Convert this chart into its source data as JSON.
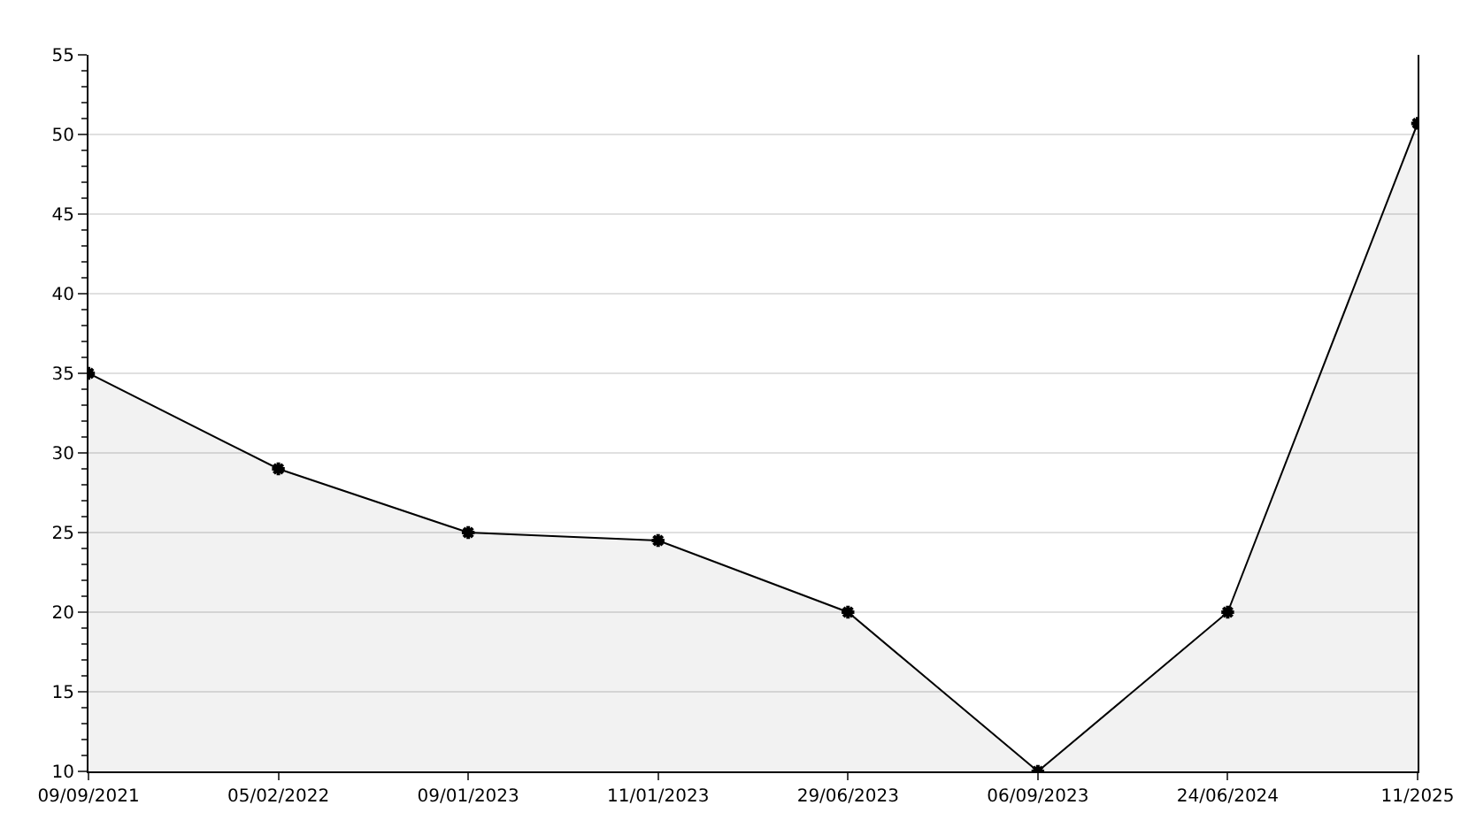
{
  "chart_data": {
    "type": "area",
    "categories": [
      "09/09/2021",
      "05/02/2022",
      "09/01/2023",
      "11/01/2023",
      "29/06/2023",
      "06/09/2023",
      "24/06/2024",
      "11/2025"
    ],
    "series": [
      {
        "color": "#000000",
        "values": [
          35,
          29,
          25,
          24.5,
          20,
          10,
          20,
          50.7
        ]
      }
    ],
    "ylim": [
      10,
      55
    ],
    "yticks": [
      10,
      15,
      20,
      25,
      30,
      35,
      40,
      45,
      50,
      55
    ],
    "grid": "y",
    "marker": "cross",
    "line_style": "solid"
  }
}
